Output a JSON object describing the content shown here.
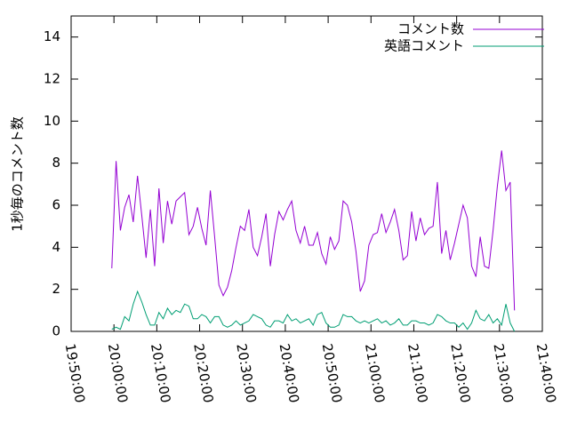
{
  "chart_data": {
    "type": "line",
    "ylabel": "1秒毎のコメント数",
    "xlim": [
      "19:50:00",
      "21:40:00"
    ],
    "xticks": [
      "19:50:00",
      "20:00:00",
      "20:10:00",
      "20:20:00",
      "20:30:00",
      "20:40:00",
      "20:50:00",
      "21:00:00",
      "21:10:00",
      "21:20:00",
      "21:30:00",
      "21:40:00"
    ],
    "ylim": [
      0,
      15
    ],
    "yticks": [
      0,
      2,
      4,
      6,
      8,
      10,
      12,
      14
    ],
    "legend": "upper right",
    "x": [
      "19:59:30",
      "20:00:30",
      "20:01:30",
      "20:02:30",
      "20:03:30",
      "20:04:30",
      "20:05:30",
      "20:06:30",
      "20:07:30",
      "20:08:30",
      "20:09:30",
      "20:10:30",
      "20:11:30",
      "20:12:30",
      "20:13:30",
      "20:14:30",
      "20:15:30",
      "20:16:30",
      "20:17:30",
      "20:18:30",
      "20:19:30",
      "20:20:30",
      "20:21:30",
      "20:22:30",
      "20:23:30",
      "20:24:30",
      "20:25:30",
      "20:26:30",
      "20:27:30",
      "20:28:30",
      "20:29:30",
      "20:30:30",
      "20:31:30",
      "20:32:30",
      "20:33:30",
      "20:34:30",
      "20:35:30",
      "20:36:30",
      "20:37:30",
      "20:38:30",
      "20:39:30",
      "20:40:30",
      "20:41:30",
      "20:42:30",
      "20:43:30",
      "20:44:30",
      "20:45:30",
      "20:46:30",
      "20:47:30",
      "20:48:30",
      "20:49:30",
      "20:50:30",
      "20:51:30",
      "20:52:30",
      "20:53:30",
      "20:54:30",
      "20:55:30",
      "20:56:30",
      "20:57:30",
      "20:58:30",
      "20:59:30",
      "21:00:30",
      "21:01:30",
      "21:02:30",
      "21:03:30",
      "21:04:30",
      "21:05:30",
      "21:06:30",
      "21:07:30",
      "21:08:30",
      "21:09:30",
      "21:10:30",
      "21:11:30",
      "21:12:30",
      "21:13:30",
      "21:14:30",
      "21:15:30",
      "21:16:30",
      "21:17:30",
      "21:18:30",
      "21:19:30",
      "21:20:30",
      "21:21:30",
      "21:22:30",
      "21:23:30",
      "21:24:30",
      "21:25:30",
      "21:26:30",
      "21:27:30",
      "21:28:30",
      "21:29:30",
      "21:30:30",
      "21:31:30",
      "21:32:30",
      "21:33:30"
    ],
    "series": [
      {
        "name": "コメント数",
        "color": "#9400d3",
        "values": [
          3.0,
          8.1,
          4.8,
          5.9,
          6.5,
          5.2,
          7.4,
          5.5,
          3.5,
          5.8,
          3.1,
          6.8,
          4.2,
          6.2,
          5.1,
          6.2,
          6.4,
          6.6,
          4.6,
          5.0,
          5.9,
          4.9,
          4.1,
          6.7,
          4.5,
          2.2,
          1.7,
          2.1,
          2.9,
          4.0,
          5.0,
          4.8,
          5.8,
          4.0,
          3.6,
          4.5,
          5.6,
          3.1,
          4.6,
          5.7,
          5.3,
          5.8,
          6.2,
          4.8,
          4.2,
          5.0,
          4.1,
          4.1,
          4.7,
          3.7,
          3.2,
          4.5,
          3.9,
          4.3,
          6.2,
          6.0,
          5.2,
          3.8,
          1.9,
          2.4,
          4.1,
          4.6,
          4.7,
          5.6,
          4.7,
          5.2,
          5.8,
          4.8,
          3.4,
          3.6,
          5.7,
          4.3,
          5.4,
          4.6,
          4.9,
          5.0,
          7.1,
          3.7,
          4.8,
          3.4,
          4.2,
          5.1,
          6.0,
          5.4,
          3.1,
          2.6,
          4.5,
          3.1,
          3.0,
          4.8,
          6.9,
          8.6,
          6.7,
          7.1,
          1.0
        ]
      },
      {
        "name": "英語コメント",
        "color": "#009e73",
        "values": [
          0.1,
          0.2,
          0.1,
          0.7,
          0.5,
          1.3,
          1.9,
          1.4,
          0.8,
          0.3,
          0.3,
          0.9,
          0.6,
          1.1,
          0.8,
          1.0,
          0.9,
          1.3,
          1.2,
          0.6,
          0.6,
          0.8,
          0.7,
          0.4,
          0.7,
          0.7,
          0.3,
          0.2,
          0.3,
          0.5,
          0.3,
          0.4,
          0.5,
          0.8,
          0.7,
          0.6,
          0.3,
          0.2,
          0.5,
          0.5,
          0.4,
          0.8,
          0.5,
          0.6,
          0.4,
          0.5,
          0.6,
          0.3,
          0.8,
          0.9,
          0.4,
          0.2,
          0.2,
          0.3,
          0.8,
          0.7,
          0.7,
          0.5,
          0.4,
          0.5,
          0.4,
          0.5,
          0.6,
          0.4,
          0.5,
          0.3,
          0.4,
          0.6,
          0.3,
          0.3,
          0.5,
          0.5,
          0.4,
          0.4,
          0.3,
          0.4,
          0.8,
          0.7,
          0.5,
          0.4,
          0.4,
          0.2,
          0.4,
          0.1,
          0.4,
          1.0,
          0.6,
          0.5,
          0.8,
          0.4,
          0.6,
          0.3,
          1.3,
          0.4,
          0.0
        ]
      }
    ]
  }
}
